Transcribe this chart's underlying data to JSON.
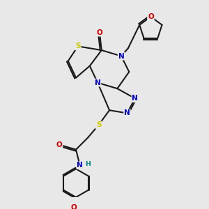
{
  "bg_color": "#e8e8e8",
  "bond_color": "#1a1a1a",
  "bond_width": 1.5,
  "atom_colors": {
    "S": "#cccc00",
    "N": "#0000cc",
    "O": "#cc0000",
    "H": "#008080",
    "C": "#1a1a1a"
  },
  "font_size": 7.5,
  "figsize": [
    3.0,
    3.0
  ],
  "dpi": 100
}
